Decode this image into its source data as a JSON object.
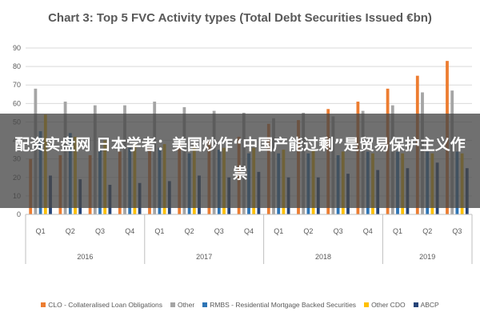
{
  "chart_data": {
    "type": "bar",
    "title": "Chart 3: Top 5 FVC Activity types (Total Debt Securities Issued €bn)",
    "ylim": [
      0,
      90
    ],
    "yticks": [
      0,
      10,
      20,
      30,
      40,
      50,
      60,
      70,
      80,
      90
    ],
    "grid": true,
    "legend_position": "bottom",
    "categories": [
      "Q1",
      "Q2",
      "Q3",
      "Q4",
      "Q1",
      "Q2",
      "Q3",
      "Q4",
      "Q1",
      "Q2",
      "Q3",
      "Q4",
      "Q1",
      "Q2",
      "Q3"
    ],
    "groups": [
      {
        "label": "2016",
        "count": 4
      },
      {
        "label": "2017",
        "count": 4
      },
      {
        "label": "2018",
        "count": 4
      },
      {
        "label": "2019",
        "count": 3
      }
    ],
    "series": [
      {
        "name": "CLO - Collateralised Loan Obligations",
        "color": "#ED7D31",
        "values": [
          30,
          32,
          32,
          34,
          36,
          38,
          40,
          42,
          49,
          51,
          57,
          61,
          68,
          75,
          83
        ]
      },
      {
        "name": "Other",
        "color": "#A5A5A5",
        "values": [
          68,
          61,
          59,
          59,
          61,
          58,
          56,
          55,
          52,
          55,
          53,
          56,
          59,
          66,
          67
        ]
      },
      {
        "name": "RMBS - Residential Mortgage Backed Securities",
        "color": "#2E75B6",
        "values": [
          45,
          44,
          35,
          36,
          36,
          33,
          35,
          33,
          33,
          33,
          32,
          34,
          34,
          34,
          34
        ]
      },
      {
        "name": "Other CDO",
        "color": "#FFC000",
        "values": [
          54,
          42,
          40,
          38,
          38,
          37,
          36,
          36,
          35,
          35,
          34,
          33,
          33,
          33,
          33
        ]
      },
      {
        "name": "ABCP",
        "color": "#264478",
        "values": [
          21,
          19,
          16,
          17,
          18,
          21,
          20,
          23,
          20,
          20,
          22,
          24,
          25,
          28,
          25
        ]
      }
    ]
  },
  "overlay": {
    "text": "配资实盘网 日本学者：美国炒作“中国产能过剩”是贸易保护主义作祟"
  }
}
